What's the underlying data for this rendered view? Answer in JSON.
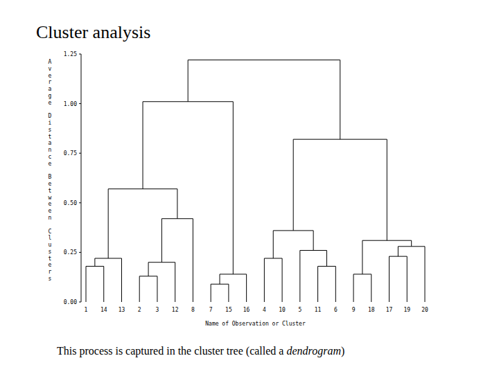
{
  "chart_data": {
    "type": "dendrogram",
    "title": "Cluster analysis",
    "y_label": "Average Distance Between Clusters",
    "x_label": "Name of Observation or Cluster",
    "caption": {
      "text": "This process is captured in the cluster tree (called a ",
      "emphasis": "dendrogram",
      "end": ")"
    },
    "ylim": [
      0,
      1.25
    ],
    "yticks": [
      {
        "value": 0,
        "label": "0.00"
      },
      {
        "value": 0.25,
        "label": "0.25"
      },
      {
        "value": 0.5,
        "label": "0.50"
      },
      {
        "value": 0.75,
        "label": "0.75"
      },
      {
        "value": 1,
        "label": "1.00"
      },
      {
        "value": 1.25,
        "label": "1.25"
      }
    ],
    "color": "#000000",
    "tree": {
      "height": 1.22,
      "children": [
        {
          "height": 1.01,
          "children": [
            {
              "height": 0.57,
              "children": [
                {
                  "height": 0.22,
                  "children": [
                    {
                      "height": 0.18,
                      "children": [
                        {
                          "label": "1"
                        },
                        {
                          "label": "14"
                        }
                      ]
                    },
                    {
                      "label": "13"
                    }
                  ]
                },
                {
                  "height": 0.42,
                  "children": [
                    {
                      "height": 0.2,
                      "children": [
                        {
                          "height": 0.13,
                          "children": [
                            {
                              "label": "2"
                            },
                            {
                              "label": "3"
                            }
                          ]
                        },
                        {
                          "label": "12"
                        }
                      ]
                    },
                    {
                      "label": "8"
                    }
                  ]
                }
              ]
            },
            {
              "height": 0.14,
              "children": [
                {
                  "height": 0.09,
                  "children": [
                    {
                      "label": "7"
                    },
                    {
                      "label": "15"
                    }
                  ]
                },
                {
                  "label": "16"
                }
              ]
            }
          ]
        },
        {
          "height": 0.82,
          "children": [
            {
              "height": 0.36,
              "children": [
                {
                  "height": 0.22,
                  "children": [
                    {
                      "label": "4"
                    },
                    {
                      "label": "10"
                    }
                  ]
                },
                {
                  "height": 0.26,
                  "children": [
                    {
                      "label": "5"
                    },
                    {
                      "height": 0.18,
                      "children": [
                        {
                          "label": "11"
                        },
                        {
                          "label": "6"
                        }
                      ]
                    }
                  ]
                }
              ]
            },
            {
              "height": 0.31,
              "children": [
                {
                  "height": 0.14,
                  "children": [
                    {
                      "label": "9"
                    },
                    {
                      "label": "18"
                    }
                  ]
                },
                {
                  "height": 0.28,
                  "children": [
                    {
                      "height": 0.23,
                      "children": [
                        {
                          "label": "17"
                        },
                        {
                          "label": "19"
                        }
                      ]
                    },
                    {
                      "label": "20"
                    }
                  ]
                }
              ]
            }
          ]
        }
      ]
    }
  }
}
